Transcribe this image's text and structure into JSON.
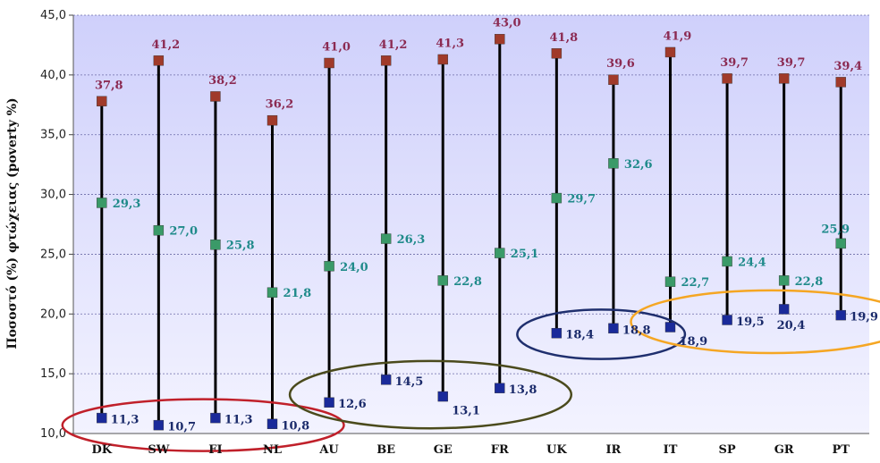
{
  "chart_data": {
    "type": "scatter",
    "title": "",
    "xlabel": "",
    "ylabel": "Ποσοστό (%) φτώχειας (poverty %)",
    "ylim": [
      10,
      45
    ],
    "yticks": [
      "10,0",
      "15,0",
      "20,0",
      "25,0",
      "30,0",
      "35,0",
      "40,0",
      "45,0"
    ],
    "grid": true,
    "categories": [
      "DK",
      "SW",
      "FI",
      "NL",
      "AU",
      "BE",
      "GE",
      "FR",
      "UK",
      "IR",
      "IT",
      "SP",
      "GR",
      "PT"
    ],
    "series": [
      {
        "values": [
          37.8,
          41.2,
          38.2,
          36.2,
          41.0,
          41.2,
          41.3,
          43.0,
          41.8,
          39.6,
          41.9,
          39.7,
          39.7,
          39.4
        ],
        "labels": [
          "37,8",
          "41,2",
          "38,2",
          "36,2",
          "41,0",
          "41,2",
          "41,3",
          "43,0",
          "41,8",
          "39,6",
          "41,9",
          "39,7",
          "39,7",
          "39,4"
        ]
      },
      {
        "values": [
          29.3,
          27.0,
          25.8,
          21.8,
          24.0,
          26.3,
          22.8,
          25.1,
          29.7,
          32.6,
          22.7,
          24.4,
          22.8,
          25.9
        ],
        "labels": [
          "29,3",
          "27,0",
          "25,8",
          "21,8",
          "24,0",
          "26,3",
          "22,8",
          "25,1",
          "29,7",
          "32,6",
          "22,7",
          "24,4",
          "22,8",
          "25,9"
        ]
      },
      {
        "values": [
          11.3,
          10.7,
          11.3,
          10.8,
          12.6,
          14.5,
          13.1,
          13.8,
          18.4,
          18.8,
          18.9,
          19.5,
          20.4,
          19.9
        ],
        "labels": [
          "11,3",
          "10,7",
          "11,3",
          "10,8",
          "12,6",
          "14,5",
          "13,1",
          "13,8",
          "18,4",
          "18,8",
          "18,9",
          "19,5",
          "20,4",
          "19,9"
        ]
      }
    ],
    "groups": [
      {
        "members": [
          "DK",
          "SW",
          "FI",
          "NL"
        ],
        "color": "#c0202a"
      },
      {
        "members": [
          "AU",
          "BE",
          "GE",
          "FR"
        ],
        "color": "#4a4a1c"
      },
      {
        "members": [
          "UK",
          "IR"
        ],
        "color": "#1f2f6e"
      },
      {
        "members": [
          "IT",
          "SP",
          "GR",
          "PT"
        ],
        "color": "#f5a623"
      }
    ],
    "colors": {
      "top": "#a03a2a",
      "top_label": "#8b2a52",
      "mid": "#3a9a68",
      "mid_label": "#1f8a8a",
      "bottom": "#1a2a9a",
      "bottom_label": "#1a2a6a",
      "line": "#000000",
      "plot_bg_top": "#cfd0fb",
      "plot_bg_bottom": "#f3f3ff"
    }
  }
}
